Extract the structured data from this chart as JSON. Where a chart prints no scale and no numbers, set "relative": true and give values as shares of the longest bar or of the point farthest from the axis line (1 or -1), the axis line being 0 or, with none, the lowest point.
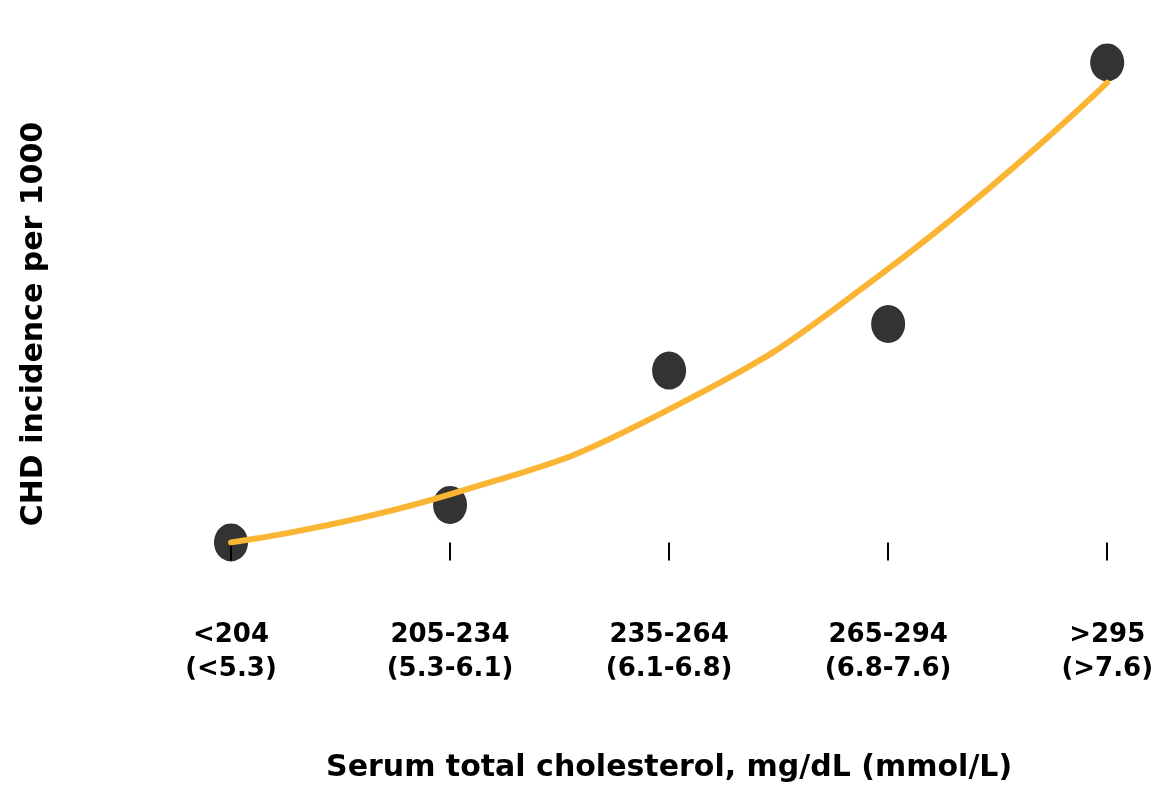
{
  "chart_data": {
    "type": "scatter",
    "relative": true,
    "xlabel": "Serum total cholesterol, mg/dL (mmol/L)",
    "ylabel": "CHD incidence per 1000",
    "categories": [
      "<204\n(<5.3)",
      "205-234\n(5.3-6.1)",
      "235-264\n(6.1-6.8)",
      "265-294\n(6.8-7.6)",
      ">295\n(>7.6)"
    ],
    "grid": false,
    "tick_labels": "x",
    "series": [
      {
        "type": "scatter",
        "color": "#000000",
        "marker": "circle",
        "values": [
          0,
          0.078,
          0.358,
          0.455,
          1
        ]
      },
      {
        "type": "line",
        "color": "#fbb535",
        "marker": "none",
        "line_style": "solid",
        "values": [
          0,
          0.1,
          0.277,
          0.57,
          0.958
        ]
      }
    ]
  }
}
